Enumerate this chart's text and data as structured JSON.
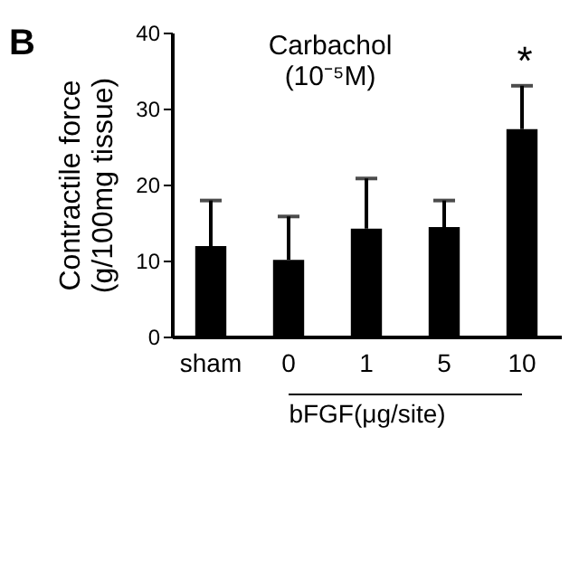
{
  "chart_data": {
    "type": "bar",
    "title": [
      "Carbachol",
      "(10⁻⁵M)"
    ],
    "ylabel": [
      "Contractile force",
      "(g/100mg tissue)"
    ],
    "xlabel": "bFGF(μg/site)",
    "categories": [
      "sham",
      "0",
      "1",
      "5",
      "10"
    ],
    "values": [
      11.9,
      10.1,
      14.2,
      14.4,
      27.3
    ],
    "color": "#000000",
    "errors": [
      [
        11.9,
        17.9
      ],
      [
        10.1,
        15.8
      ],
      [
        14.2,
        20.8
      ],
      [
        14.4,
        17.9
      ],
      [
        27.3,
        33.0
      ]
    ],
    "ylim": [
      0,
      40
    ],
    "yticks": [
      0,
      10,
      20,
      30,
      40
    ],
    "grid": false,
    "annotations": [
      "B",
      "*"
    ]
  }
}
